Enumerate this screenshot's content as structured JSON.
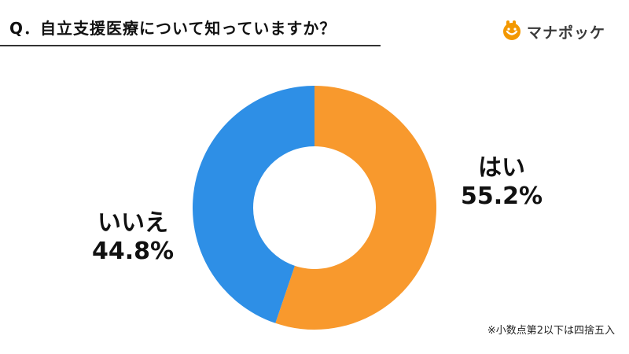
{
  "header": {
    "question": "Q．自立支援医療について知っていますか？"
  },
  "brand": {
    "name": "マナポッケ",
    "logo_icon": "manapocket-logo-icon",
    "logo_color": "#f39800"
  },
  "chart_data": {
    "type": "pie",
    "donut": true,
    "title": "",
    "slices": [
      {
        "label": "はい",
        "value": 55.2,
        "value_text": "55.2%",
        "color": "#f8992d"
      },
      {
        "label": "いいえ",
        "value": 44.8,
        "value_text": "44.8%",
        "color": "#2e8fe6"
      }
    ],
    "legend": "none"
  },
  "footnote": "※小数点第2以下は四捨五入"
}
